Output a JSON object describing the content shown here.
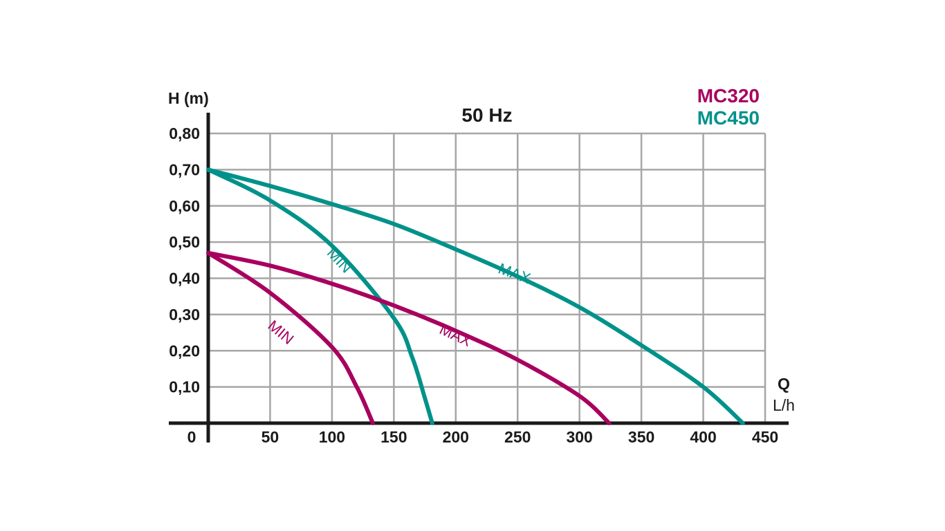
{
  "chart_data": {
    "type": "line",
    "title": "50 Hz",
    "ylabel": "H (m)",
    "xlabel_q": "Q",
    "xlabel_unit": "L/h",
    "origin_label": "0",
    "x_ticks": [
      50,
      100,
      150,
      200,
      250,
      300,
      350,
      400,
      450
    ],
    "x_tick_labels": [
      "50",
      "100",
      "150",
      "200",
      "250",
      "300",
      "350",
      "400",
      "450"
    ],
    "y_ticks": [
      0.1,
      0.2,
      0.3,
      0.4,
      0.5,
      0.6,
      0.7,
      0.8
    ],
    "y_tick_labels": [
      "0,10",
      "0,20",
      "0,30",
      "0,40",
      "0,50",
      "0,60",
      "0,70",
      "0,80"
    ],
    "xlim": [
      0,
      450
    ],
    "ylim": [
      0,
      0.8
    ],
    "grid": true,
    "legend": [
      {
        "label": "MC320",
        "color": "#a8005f"
      },
      {
        "label": "MC450",
        "color": "#00928a"
      }
    ],
    "series": [
      {
        "model": "MC450",
        "label": "MAX",
        "color": "#00928a",
        "points": [
          [
            0,
            0.7
          ],
          [
            50,
            0.655
          ],
          [
            100,
            0.605
          ],
          [
            150,
            0.55
          ],
          [
            200,
            0.48
          ],
          [
            250,
            0.405
          ],
          [
            300,
            0.32
          ],
          [
            350,
            0.215
          ],
          [
            400,
            0.1
          ],
          [
            432,
            0.0
          ]
        ],
        "label_at": [
          246,
          0.4
        ],
        "label_rot": 20
      },
      {
        "model": "MC450",
        "label": "MIN",
        "color": "#00928a",
        "points": [
          [
            0,
            0.7
          ],
          [
            50,
            0.615
          ],
          [
            100,
            0.49
          ],
          [
            150,
            0.29
          ],
          [
            165,
            0.18
          ],
          [
            175,
            0.07
          ],
          [
            181,
            0.0
          ]
        ],
        "label_at": [
          103,
          0.44
        ],
        "label_rot": 47
      },
      {
        "model": "MC320",
        "label": "MAX",
        "color": "#a8005f",
        "points": [
          [
            0,
            0.47
          ],
          [
            50,
            0.435
          ],
          [
            100,
            0.385
          ],
          [
            150,
            0.325
          ],
          [
            200,
            0.255
          ],
          [
            250,
            0.175
          ],
          [
            300,
            0.075
          ],
          [
            324,
            0.0
          ]
        ],
        "label_at": [
          198,
          0.23
        ],
        "label_rot": 25
      },
      {
        "model": "MC320",
        "label": "MIN",
        "color": "#a8005f",
        "points": [
          [
            0,
            0.47
          ],
          [
            50,
            0.36
          ],
          [
            100,
            0.21
          ],
          [
            120,
            0.1
          ],
          [
            133,
            0.0
          ]
        ],
        "label_at": [
          56,
          0.24
        ],
        "label_rot": 40
      }
    ]
  }
}
